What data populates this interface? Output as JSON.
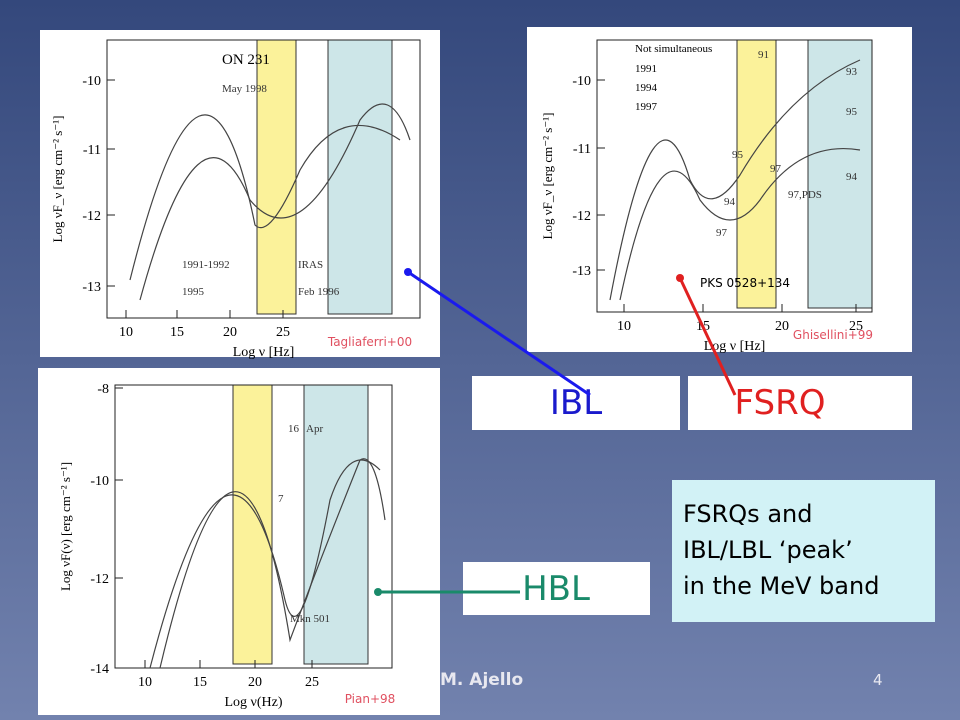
{
  "slide": {
    "author": "M. Ajello",
    "page_number": "4"
  },
  "panels": [
    {
      "title": "ON 231",
      "x_label": "Log ν [Hz]",
      "y_label": "Log νF_ν [erg cm⁻² s⁻¹]",
      "xticks": [
        "10",
        "15",
        "20",
        "25"
      ],
      "yticks": [
        "-10",
        "-11",
        "-12",
        "-13"
      ],
      "annotations": [
        "May 1998",
        "1991-1992",
        "1995",
        "IRAS",
        "Feb 1996"
      ],
      "credit": "Tagliaferri+00"
    },
    {
      "legend": [
        "Not simultaneous",
        "1991",
        "1994",
        "1997"
      ],
      "x_label": "Log ν [Hz]",
      "y_label": "Log νF_ν [erg cm⁻² s⁻¹]",
      "xticks": [
        "10",
        "15",
        "20",
        "25"
      ],
      "yticks": [
        "-10",
        "-11",
        "-12",
        "-13"
      ],
      "annotations": [
        "91",
        "93",
        "95",
        "95",
        "94",
        "97",
        "97",
        "97,PDS",
        "94"
      ],
      "source": "PKS 0528+134",
      "credit": "Ghisellini+99"
    },
    {
      "x_label": "Log ν(Hz)",
      "y_label": "Log νF(ν) [erg cm⁻² s⁻¹]",
      "xticks": [
        "10",
        "15",
        "20",
        "25"
      ],
      "yticks": [
        "-8",
        "-10",
        "-12",
        "-14"
      ],
      "annotations": [
        "16",
        "Apr",
        "7",
        "Mkn 501"
      ],
      "credit": "Pian+98"
    }
  ],
  "labels": {
    "ibl": "IBL",
    "fsrq": "FSRQ",
    "hbl": "HBL"
  },
  "note": [
    "FSRQs and",
    "IBL/LBL ‘peak’",
    "in the MeV band"
  ]
}
